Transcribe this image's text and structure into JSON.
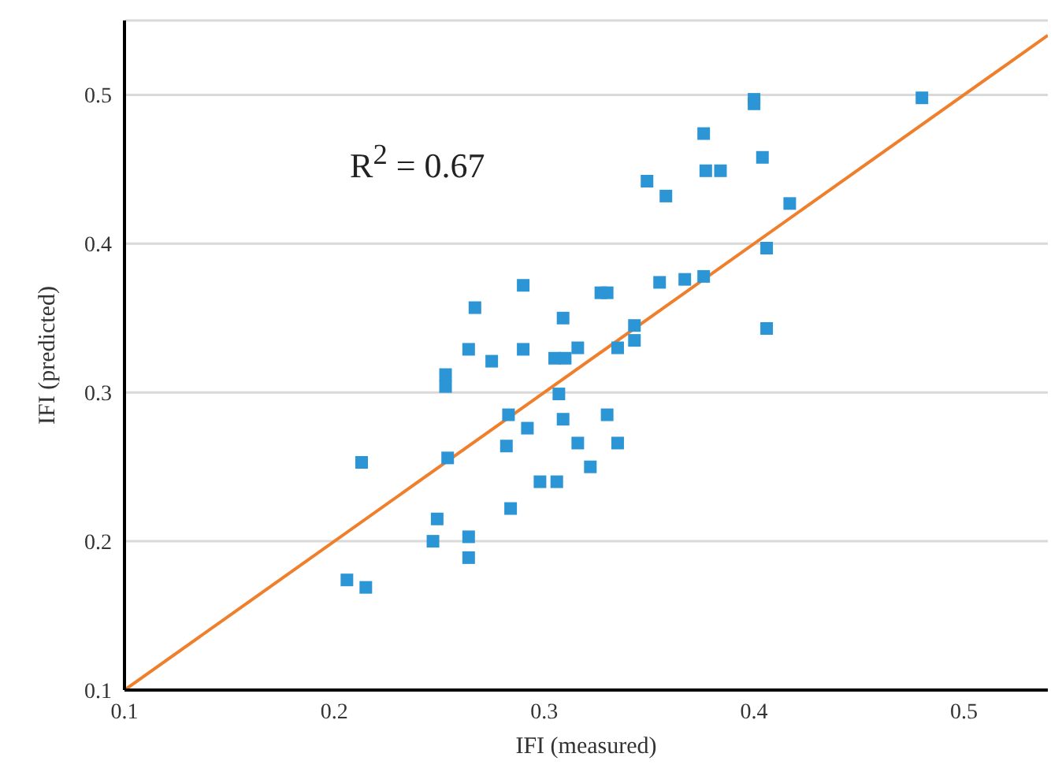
{
  "chart_data": {
    "type": "scatter",
    "xlabel": "IFI (measured)",
    "ylabel": "IFI (predicted)",
    "xlim": [
      0.1,
      0.54
    ],
    "xticks": [
      0.1,
      0.2,
      0.3,
      0.4,
      0.5
    ],
    "ylim": [
      0.1,
      0.55
    ],
    "yticks": [
      0.1,
      0.2,
      0.3,
      0.4,
      0.5
    ],
    "grid": "y",
    "marker": "square",
    "annotations": [
      "R$^{2}$ = 0.67"
    ],
    "series": [
      {
        "color": "#2b95d6",
        "x": [
          0.206,
          0.215,
          0.213,
          0.249,
          0.247,
          0.264,
          0.264,
          0.254,
          0.253,
          0.253,
          0.264,
          0.275,
          0.29,
          0.305,
          0.31,
          0.307,
          0.309,
          0.283,
          0.292,
          0.282,
          0.284,
          0.298,
          0.306,
          0.322,
          0.316,
          0.335,
          0.33,
          0.316,
          0.335,
          0.343,
          0.343,
          0.406,
          0.309,
          0.4,
          0.4,
          0.48,
          0.376,
          0.377,
          0.384,
          0.404,
          0.349,
          0.358,
          0.417,
          0.406,
          0.376,
          0.367,
          0.355,
          0.327,
          0.33,
          0.29,
          0.267
        ],
        "values": [
          0.174,
          0.169,
          0.253,
          0.215,
          0.2,
          0.203,
          0.189,
          0.256,
          0.312,
          0.304,
          0.329,
          0.321,
          0.329,
          0.323,
          0.323,
          0.299,
          0.282,
          0.285,
          0.276,
          0.264,
          0.222,
          0.24,
          0.24,
          0.25,
          0.266,
          0.266,
          0.285,
          0.33,
          0.33,
          0.345,
          0.335,
          0.343,
          0.35,
          0.497,
          0.494,
          0.498,
          0.474,
          0.449,
          0.449,
          0.458,
          0.442,
          0.432,
          0.427,
          0.397,
          0.378,
          0.376,
          0.374,
          0.367,
          0.367,
          0.372,
          0.357
        ]
      },
      {
        "type": "line",
        "marker": "none",
        "color": "#f07f2c",
        "x": [
          0.1,
          0.54
        ],
        "values": [
          0.1,
          0.54
        ]
      }
    ]
  }
}
